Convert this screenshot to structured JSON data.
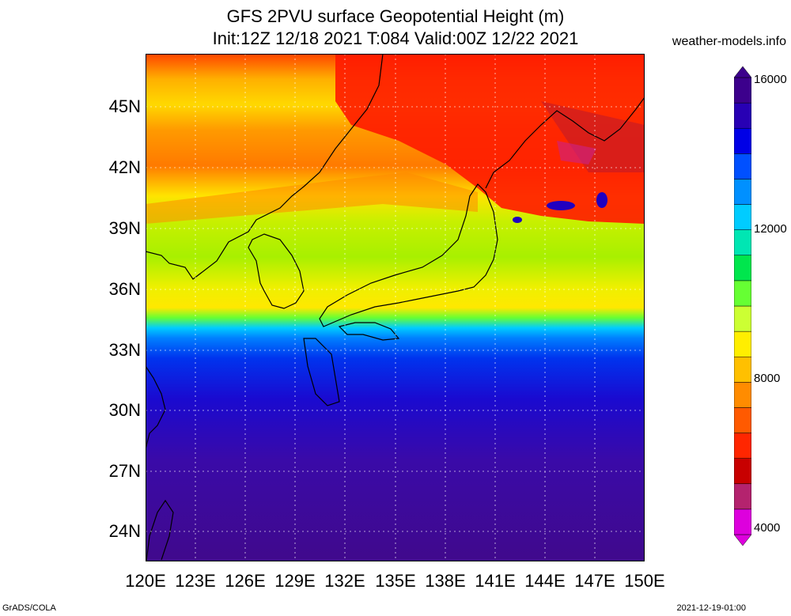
{
  "header": {
    "title_line1": "GFS 2PVU surface Geopotential Height (m)",
    "title_line2": "Init:12Z 12/18 2021 T:084 Valid:00Z 12/22 2021",
    "site": "weather-models.info"
  },
  "axes": {
    "lat_labels": [
      "45N",
      "42N",
      "39N",
      "36N",
      "33N",
      "30N",
      "27N",
      "24N"
    ],
    "lon_labels": [
      "120E",
      "123E",
      "126E",
      "129E",
      "132E",
      "135E",
      "138E",
      "141E",
      "144E",
      "147E",
      "150E"
    ]
  },
  "colorbar": {
    "labels": [
      "16000",
      "12000",
      "8000",
      "4000"
    ],
    "colors": [
      "#dd00dd",
      "#b4236e",
      "#c80000",
      "#ff2600",
      "#ff5a00",
      "#ff8c00",
      "#ffc000",
      "#ffee00",
      "#ccff33",
      "#66ff33",
      "#00e64d",
      "#00e6b3",
      "#00ccff",
      "#0090ff",
      "#0050ff",
      "#0000e6",
      "#2800b4",
      "#3c008c"
    ]
  },
  "footer": {
    "left": "GrADS/COLA",
    "right": "2021-12-19-01:00"
  }
}
